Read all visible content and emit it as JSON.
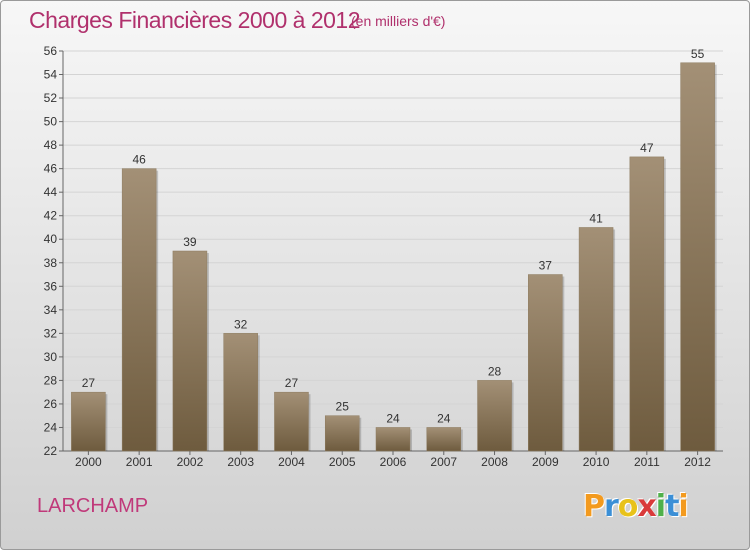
{
  "chart_data": {
    "type": "bar",
    "title": "Charges Financières 2000 à 2012",
    "subtitle": "(en milliers d'€)",
    "categories": [
      "2000",
      "2001",
      "2002",
      "2003",
      "2004",
      "2005",
      "2006",
      "2007",
      "2008",
      "2009",
      "2010",
      "2011",
      "2012"
    ],
    "values": [
      27,
      46,
      39,
      32,
      27,
      25,
      24,
      24,
      28,
      37,
      41,
      47,
      55
    ],
    "ylim": [
      22,
      56
    ],
    "yticks": [
      22,
      24,
      26,
      28,
      30,
      32,
      34,
      36,
      38,
      40,
      42,
      44,
      46,
      48,
      50,
      52,
      54,
      56
    ],
    "grid": true,
    "bar_color_top": "#a39076",
    "bar_color_bottom": "#6e5b3e"
  },
  "commune": "LARCHAMP",
  "logo": {
    "letters": [
      "P",
      "r",
      "o",
      "x",
      "i",
      "t",
      "i"
    ],
    "colors": [
      "#f39a1e",
      "#3b8fd6",
      "#e8c21a",
      "#d93a3a",
      "#4fb04a",
      "#3b8fd6",
      "#f39a1e"
    ]
  }
}
